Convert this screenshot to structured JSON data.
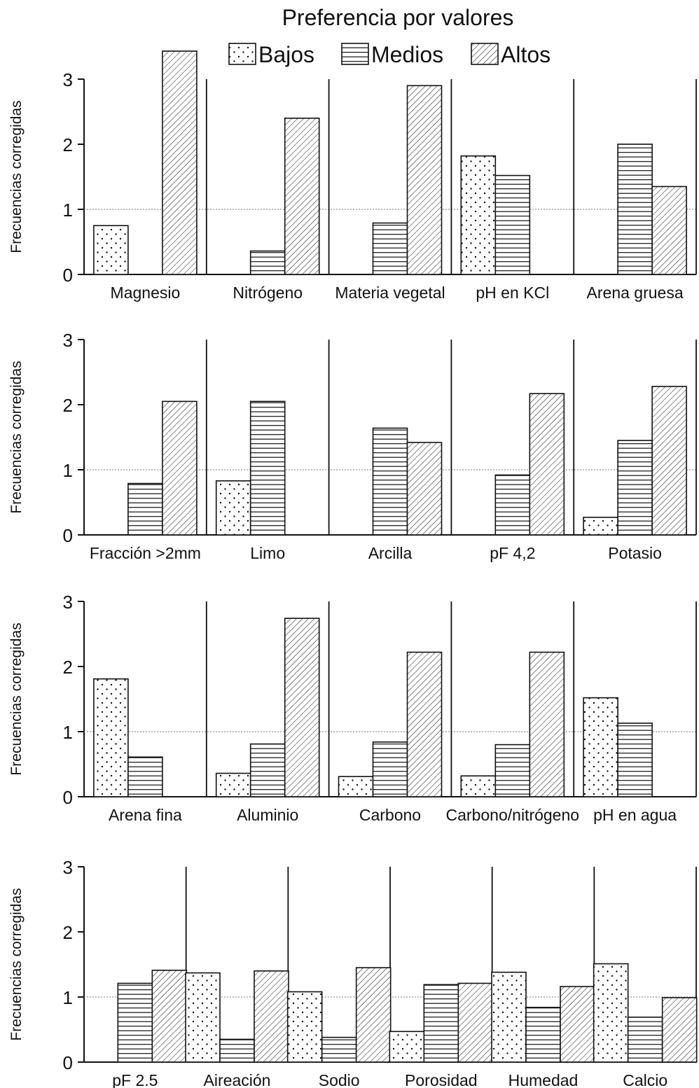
{
  "title": "Preferencia por valores",
  "legend": [
    {
      "key": "bajos",
      "label": "Bajos",
      "pattern": "dots"
    },
    {
      "key": "medios",
      "label": "Medios",
      "pattern": "hlines"
    },
    {
      "key": "altos",
      "label": "Altos",
      "pattern": "diagonal"
    }
  ],
  "ylabel": "Frecuencias corregidas",
  "yticks": [
    "0",
    "1",
    "2",
    "3"
  ],
  "ylim": [
    0,
    3
  ],
  "reference_line": 1,
  "colors": {
    "stroke": "#111111",
    "fill": "#ffffff",
    "reference": "#777777"
  },
  "chart_data": [
    {
      "type": "bar",
      "categories": [
        "Magnesio",
        "Nitrógeno",
        "Materia vegetal",
        "pH en KCl",
        "Arena gruesa"
      ],
      "series": [
        {
          "name": "Bajos",
          "values": [
            0.75,
            null,
            null,
            1.82,
            null
          ]
        },
        {
          "name": "Medios",
          "values": [
            null,
            0.36,
            0.79,
            1.52,
            2.0
          ]
        },
        {
          "name": "Altos",
          "values": [
            3.43,
            2.4,
            2.9,
            null,
            1.35
          ]
        }
      ]
    },
    {
      "type": "bar",
      "categories": [
        "Fracción >2mm",
        "Limo",
        "Arcilla",
        "pF 4,2",
        "Potasio"
      ],
      "series": [
        {
          "name": "Bajos",
          "values": [
            null,
            0.83,
            null,
            null,
            0.27
          ]
        },
        {
          "name": "Medios",
          "values": [
            0.79,
            2.05,
            1.64,
            0.92,
            1.45
          ]
        },
        {
          "name": "Altos",
          "values": [
            2.05,
            null,
            1.42,
            2.17,
            2.28
          ]
        }
      ]
    },
    {
      "type": "bar",
      "categories": [
        "Arena fina",
        "Aluminio",
        "Carbono",
        "Carbono/nitrógeno",
        "pH en agua"
      ],
      "series": [
        {
          "name": "Bajos",
          "values": [
            1.81,
            0.36,
            0.31,
            0.32,
            1.52
          ]
        },
        {
          "name": "Medios",
          "values": [
            0.61,
            0.81,
            0.84,
            0.8,
            1.13
          ]
        },
        {
          "name": "Altos",
          "values": [
            null,
            2.74,
            2.22,
            2.22,
            null
          ]
        }
      ]
    },
    {
      "type": "bar",
      "categories": [
        "pF 2.5",
        "Aireación",
        "Sodio",
        "Porosidad",
        "Humedad",
        "Calcio"
      ],
      "series": [
        {
          "name": "Bajos",
          "values": [
            null,
            1.37,
            1.08,
            0.47,
            1.38,
            1.51
          ]
        },
        {
          "name": "Medios",
          "values": [
            1.21,
            0.35,
            0.38,
            1.19,
            0.84,
            0.69
          ]
        },
        {
          "name": "Altos",
          "values": [
            1.41,
            1.4,
            1.45,
            1.21,
            1.16,
            0.99
          ]
        }
      ]
    }
  ]
}
